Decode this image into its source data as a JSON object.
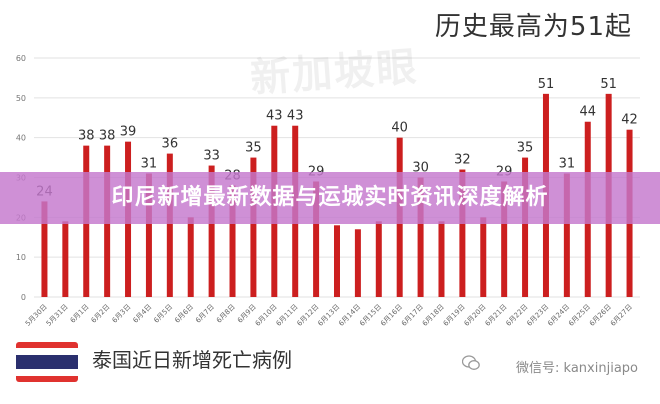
{
  "headline": "历史最高为51起",
  "watermark": "新加坡眼",
  "banner": "印尼新增最新数据与运城实时资讯深度解析",
  "footer": {
    "title": "泰国近日新增死亡病例",
    "source": "微信号: kanxinjiapo"
  },
  "colors": {
    "bar": "#cc1f1f",
    "banner": "#c478cd",
    "flag_red": "#e0322f",
    "flag_white": "#ffffff",
    "flag_blue": "#2a2f6e"
  },
  "chart_data": {
    "type": "bar",
    "categories": [
      "5月30日",
      "5月31日",
      "6月1日",
      "6月2日",
      "6月3日",
      "6月4日",
      "6月5日",
      "6月6日",
      "6月7日",
      "6月8日",
      "6月9日",
      "6月10日",
      "6月11日",
      "6月12日",
      "6月13日",
      "6月14日",
      "6月15日",
      "6月16日",
      "6月17日",
      "6月18日",
      "6月19日",
      "6月20日",
      "6月21日",
      "6月22日",
      "6月23日",
      "6月24日",
      "6月25日",
      "6月26日",
      "6月27日"
    ],
    "values": [
      24,
      19,
      38,
      38,
      39,
      31,
      36,
      20,
      33,
      28,
      35,
      43,
      43,
      29,
      18,
      17,
      19,
      40,
      30,
      19,
      32,
      20,
      29,
      35,
      51,
      31,
      44,
      51,
      42
    ],
    "labels": [
      "24",
      "",
      "38",
      "38",
      "39",
      "31",
      "36",
      "",
      "33",
      "28",
      "35",
      "43",
      "43",
      "29",
      "",
      "",
      "",
      "40",
      "30",
      "",
      "32",
      "",
      "29",
      "35",
      "51",
      "31",
      "44",
      "51",
      "42"
    ],
    "yticks": [
      0,
      10,
      20,
      30,
      40,
      50,
      60
    ],
    "ylim": [
      0,
      60
    ],
    "grid": true
  }
}
